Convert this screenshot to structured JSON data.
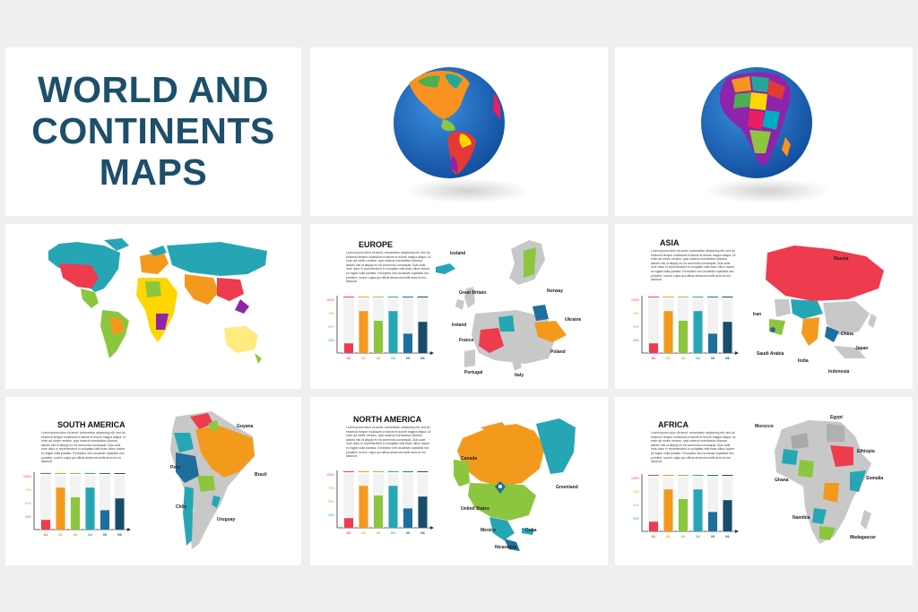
{
  "cover": {
    "title_lines": [
      "WORLD AND",
      "CONTINENTS",
      "MAPS"
    ]
  },
  "colors": {
    "title": "#1d4f6a",
    "bar_palette": [
      "#ef3b4e",
      "#f39a1d",
      "#8cc63f",
      "#26a6b5",
      "#1f6f9e",
      "#174d6b"
    ],
    "land_gray": "#c8c8c8",
    "ocean": "#1a6fc4"
  },
  "lorem_text": "Lorem ipsum dolor sit amet, consectetur adipiscing elit, sed do eiusmod tempor incididunt ut labore et dolore magna aliqua. Ut enim ad minim veniam, quis nostrud exercitation ullamco laboris nisi ut aliquip ex ea commodo consequat. Duis aute irure dolor in reprehenderit in voluptate velit esse cillum dolore eu fugiat nulla pariatur. Excepteur sint occaecat cupidatat non proident, sunt in culpa qui officia deserunt mollit anim id est laborum.",
  "slides": [
    {
      "key": "europe",
      "title": "EUROPE",
      "labels": [
        "Iceland",
        "Great Britain",
        "Norway",
        "Ireland",
        "Ukraine",
        "France",
        "Poland",
        "Portugal",
        "Italy"
      ],
      "chart_data": {
        "type": "bar",
        "categories": [
          "01",
          "02",
          "03",
          "04",
          "05",
          "06"
        ],
        "values": [
          18,
          78,
          60,
          78,
          36,
          58
        ],
        "ylim": [
          0,
          100
        ],
        "yticks": [
          "100%",
          "75%",
          "50%",
          "25%"
        ]
      }
    },
    {
      "key": "asia",
      "title": "ASIA",
      "labels": [
        "Russia",
        "Iran",
        "China",
        "Japan",
        "Saudi Arabia",
        "India",
        "Indonesia"
      ],
      "chart_data": {
        "type": "bar",
        "categories": [
          "01",
          "02",
          "03",
          "04",
          "05",
          "06"
        ],
        "values": [
          18,
          78,
          60,
          78,
          36,
          58
        ],
        "ylim": [
          0,
          100
        ],
        "yticks": [
          "100%",
          "75%",
          "50%",
          "25%"
        ]
      }
    },
    {
      "key": "south_america",
      "title": "SOUTH AMERICA",
      "labels": [
        "Guyana",
        "Peru",
        "Brazil",
        "Chile",
        "Uruguay"
      ],
      "chart_data": {
        "type": "bar",
        "categories": [
          "01",
          "02",
          "03",
          "04",
          "05",
          "06"
        ],
        "values": [
          18,
          78,
          60,
          78,
          36,
          58
        ],
        "ylim": [
          0,
          100
        ],
        "yticks": [
          "100%",
          "75%",
          "50%",
          "25%"
        ]
      }
    },
    {
      "key": "north_america",
      "title": "NORTH AMERICA",
      "labels": [
        "Canada",
        "Greenland",
        "United States",
        "Mexico",
        "Cuba",
        "Nicaragua"
      ],
      "chart_data": {
        "type": "bar",
        "categories": [
          "01",
          "02",
          "03",
          "04",
          "05",
          "06"
        ],
        "values": [
          18,
          78,
          60,
          78,
          36,
          58
        ],
        "ylim": [
          0,
          100
        ],
        "yticks": [
          "100%",
          "75%",
          "50%",
          "25%"
        ]
      }
    },
    {
      "key": "africa",
      "title": "AFRICA",
      "labels": [
        "Morocco",
        "Egypt",
        "Ethiopia",
        "Ghana",
        "Somalia",
        "Namibia",
        "Madagascar"
      ],
      "chart_data": {
        "type": "bar",
        "categories": [
          "01",
          "02",
          "03",
          "04",
          "05",
          "06"
        ],
        "values": [
          18,
          78,
          60,
          78,
          36,
          58
        ],
        "ylim": [
          0,
          100
        ],
        "yticks": [
          "100%",
          "75%",
          "50%",
          "25%"
        ]
      }
    }
  ]
}
